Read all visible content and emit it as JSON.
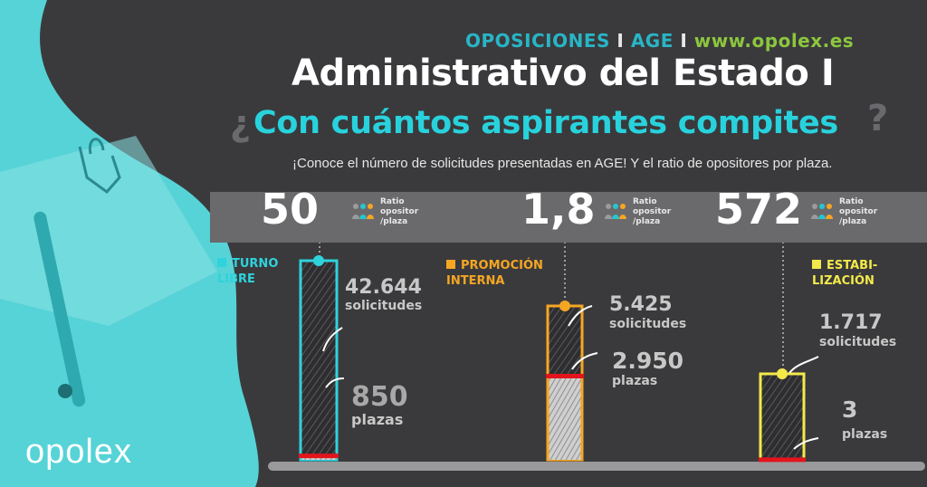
{
  "header": {
    "tag_left": "OPOSICIONES",
    "separator": "I",
    "tag_mid": "AGE",
    "website": "www.opolex.es",
    "title": "Administrativo del Estado I",
    "question": "Con cuántos aspirantes compites",
    "q_open": "¿",
    "q_close": "?",
    "subtitle": "¡Conoce el número de solicitudes presentadas en AGE! Y el ratio de opositores por plaza."
  },
  "ratio_label": "Ratio\nopositor\n/plaza",
  "brand": "opolex",
  "colors": {
    "turquoise": "#2ed3dc",
    "orange": "#f5a623",
    "yellow": "#f3e94a",
    "red": "#e3141c",
    "background": "#3a3a3c",
    "website": "#8cc63f"
  },
  "chart_data": {
    "type": "bar",
    "categories": [
      "TURNO\nLIBRE",
      "PROMOCIÓN\nINTERNA",
      "ESTABI-\nLIZACIÓN"
    ],
    "series": [
      {
        "name": "solicitudes",
        "values": [
          42644,
          5425,
          1717
        ]
      },
      {
        "name": "plazas",
        "values": [
          850,
          2950,
          3
        ]
      }
    ],
    "ratio": [
      50,
      1.8,
      572
    ],
    "ratio_text": [
      "50",
      "1,8",
      "572"
    ],
    "solicitudes_text": [
      "42.644",
      "5.425",
      "1.717"
    ],
    "plazas_text": [
      "850",
      "2.950",
      "3"
    ],
    "solicitudes_label": "solicitudes",
    "plazas_label": "plazas",
    "legend": "none"
  }
}
